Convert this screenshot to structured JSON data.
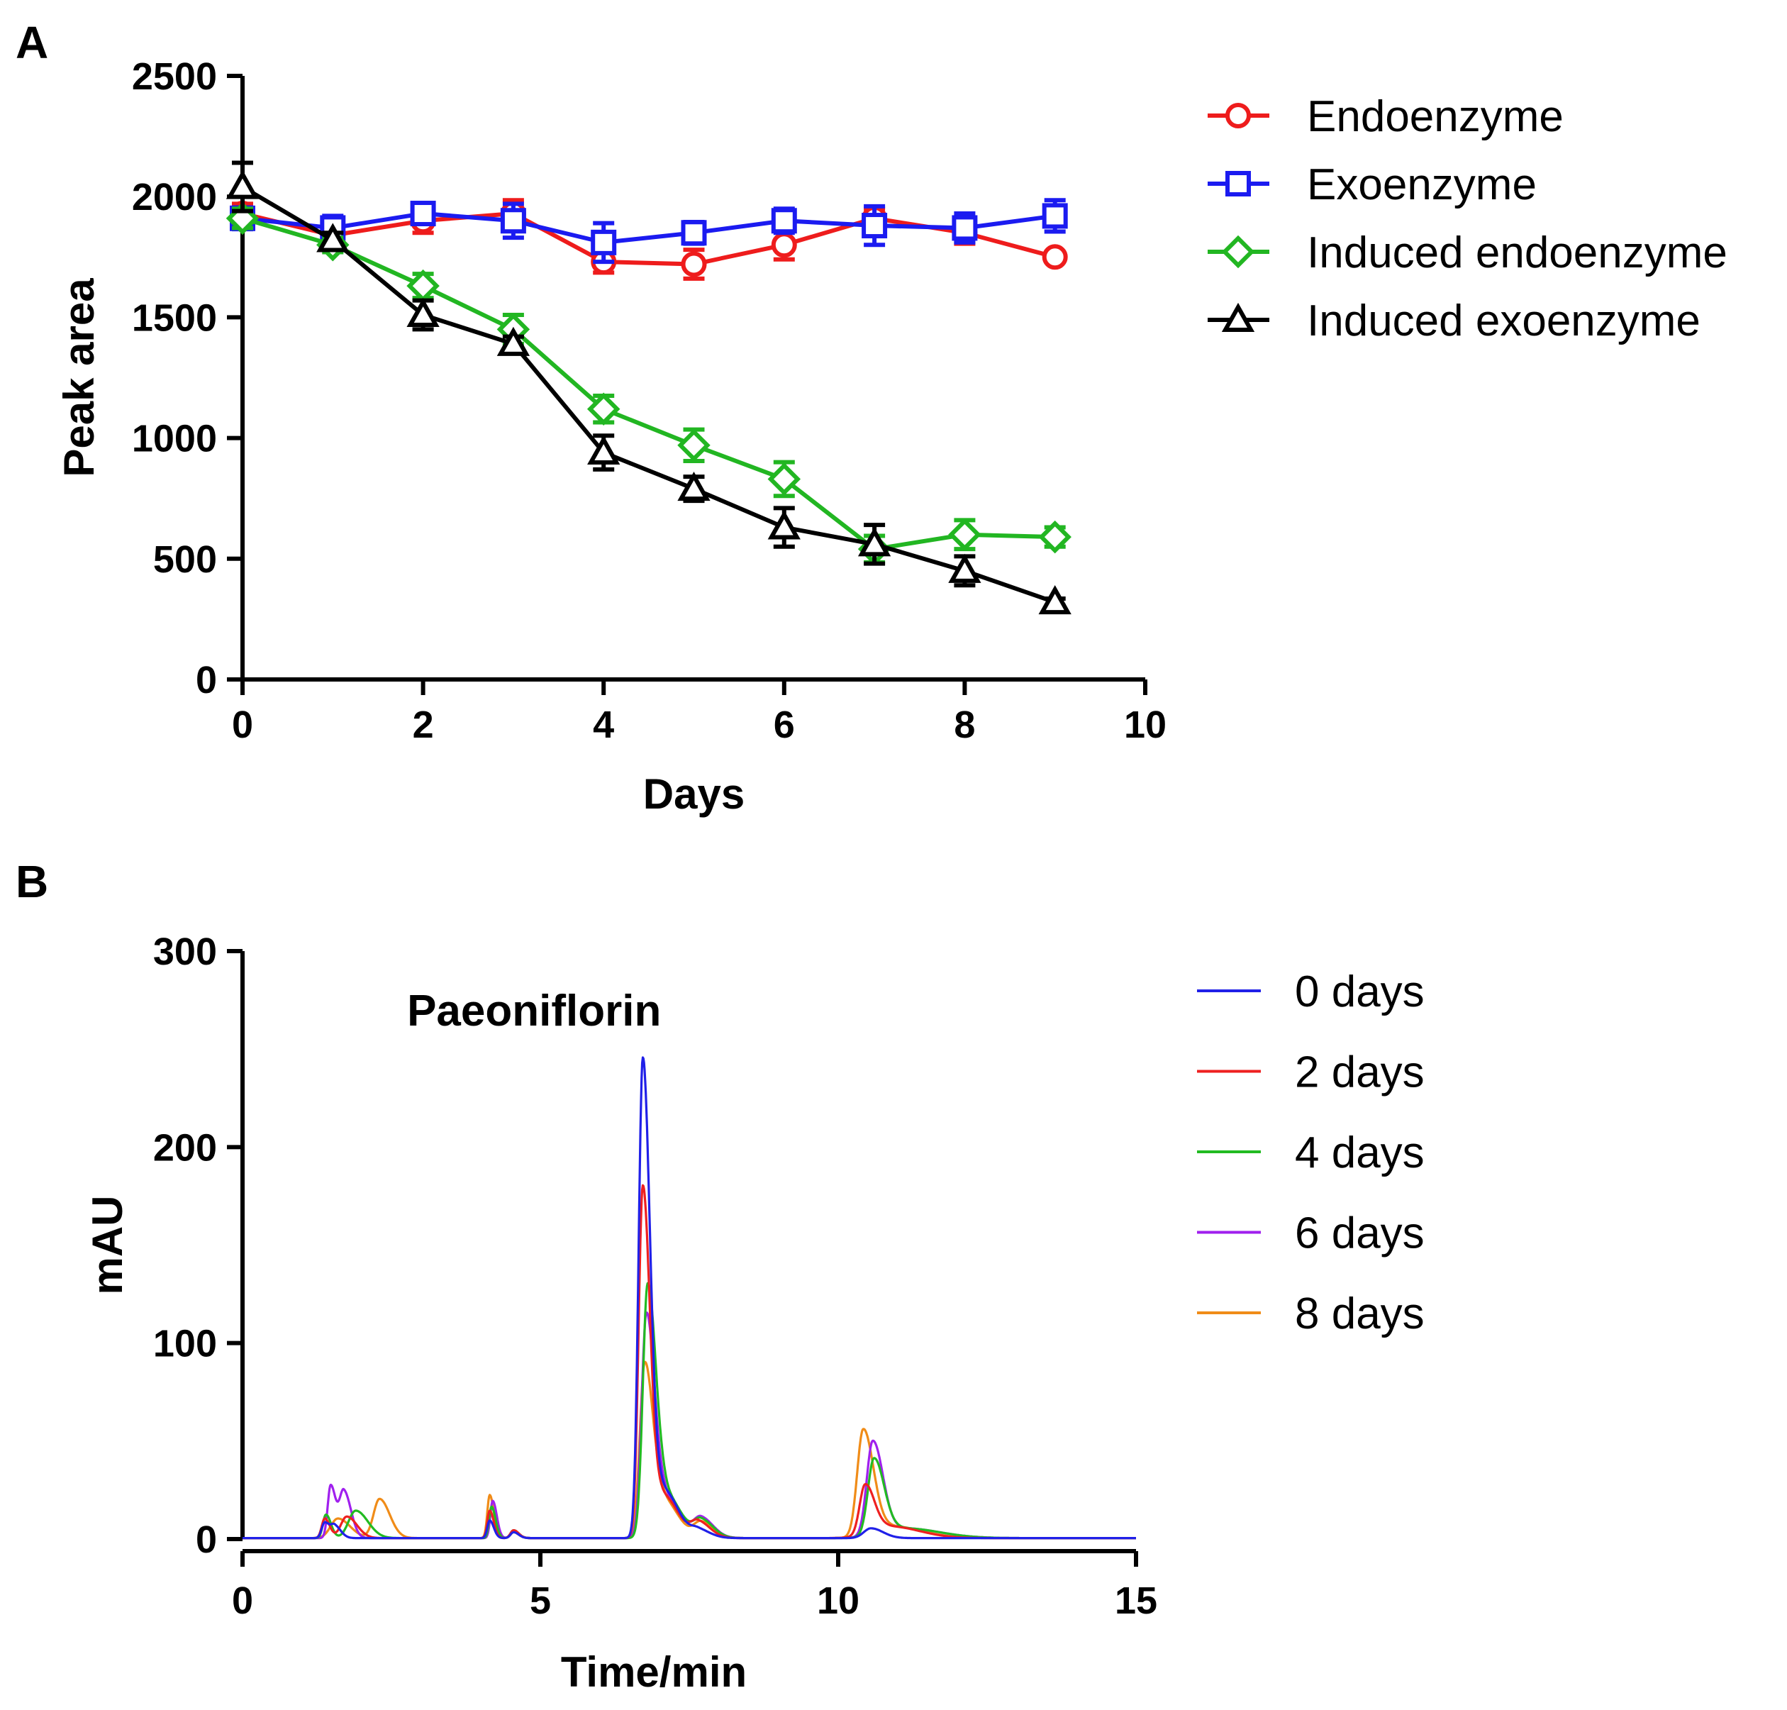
{
  "panel_labels": {
    "a": "A",
    "b": "B"
  },
  "chart_data": [
    {
      "type": "line",
      "panel": "A",
      "title": "",
      "xlabel": "Days",
      "ylabel": "Peak area",
      "xlim": [
        0,
        10
      ],
      "ylim": [
        0,
        2500
      ],
      "xticks": [
        0,
        2,
        4,
        6,
        8,
        10
      ],
      "yticks": [
        0,
        500,
        1000,
        1500,
        2000,
        2500
      ],
      "xtick_labels": [
        "0",
        "2",
        "4",
        "6",
        "8",
        "10"
      ],
      "ytick_labels": [
        "0",
        "500",
        "1000",
        "1500",
        "2000",
        "2500"
      ],
      "legend_position": "right",
      "series": [
        {
          "name": "Endoenzyme",
          "color": "#ee1c1c",
          "marker": "circle",
          "x": [
            0,
            1,
            2,
            3,
            4,
            5,
            6,
            7,
            8,
            9
          ],
          "y": [
            1930,
            1840,
            1900,
            1930,
            1730,
            1720,
            1800,
            1910,
            1850,
            1750
          ],
          "err": [
            40,
            35,
            50,
            55,
            45,
            60,
            60,
            40,
            45,
            20
          ]
        },
        {
          "name": "Exoenzyme",
          "color": "#1b1bf0",
          "marker": "square",
          "x": [
            0,
            1,
            2,
            3,
            4,
            5,
            6,
            7,
            8,
            9
          ],
          "y": [
            1910,
            1870,
            1930,
            1900,
            1810,
            1850,
            1900,
            1880,
            1870,
            1920
          ],
          "err": [
            45,
            50,
            40,
            70,
            80,
            45,
            50,
            80,
            60,
            65
          ]
        },
        {
          "name": "Induced endoenzyme",
          "color": "#22b622",
          "marker": "diamond",
          "x": [
            0,
            1,
            2,
            3,
            4,
            5,
            6,
            7,
            8,
            9
          ],
          "y": [
            1910,
            1800,
            1630,
            1450,
            1120,
            970,
            830,
            540,
            600,
            590
          ],
          "err": [
            40,
            30,
            50,
            60,
            55,
            65,
            70,
            55,
            60,
            40
          ]
        },
        {
          "name": "Induced exoenzyme",
          "color": "#000000",
          "marker": "triangle",
          "x": [
            0,
            1,
            2,
            3,
            4,
            5,
            6,
            7,
            8,
            9
          ],
          "y": [
            2040,
            1820,
            1510,
            1390,
            940,
            790,
            630,
            560,
            450,
            320
          ],
          "err": [
            100,
            30,
            60,
            30,
            70,
            50,
            80,
            80,
            60,
            15
          ]
        }
      ]
    },
    {
      "type": "line",
      "panel": "B",
      "title": "",
      "xlabel": "Time/min",
      "ylabel": "mAU",
      "xlim": [
        0,
        15
      ],
      "ylim": [
        0,
        300
      ],
      "xticks": [
        0,
        5,
        10,
        15
      ],
      "yticks": [
        0,
        100,
        200,
        300
      ],
      "xtick_labels": [
        "0",
        "5",
        "10",
        "15"
      ],
      "ytick_labels": [
        "0",
        "100",
        "200",
        "300"
      ],
      "legend_position": "right",
      "annotations": [
        {
          "text": "Paeoniflorin",
          "x": 6.8,
          "y": 262
        }
      ],
      "series": [
        {
          "name": "0 days",
          "color": "#2020e8",
          "baseline": 0.5,
          "peaks": [
            [
              1.38,
              8,
              0.05
            ],
            [
              1.55,
              6,
              0.06
            ],
            [
              4.15,
              9,
              0.04
            ],
            [
              4.55,
              3,
              0.05
            ],
            [
              6.72,
              243,
              0.07
            ],
            [
              7.05,
              25,
              0.15
            ],
            [
              7.65,
              4,
              0.12
            ],
            [
              10.55,
              5,
              0.12
            ]
          ]
        },
        {
          "name": "2 days",
          "color": "#ee2020",
          "baseline": 0.5,
          "peaks": [
            [
              1.38,
              10,
              0.05
            ],
            [
              1.75,
              11,
              0.1
            ],
            [
              4.15,
              14,
              0.04
            ],
            [
              4.55,
              4,
              0.05
            ],
            [
              6.72,
              178,
              0.07
            ],
            [
              7.05,
              22,
              0.15
            ],
            [
              7.65,
              8,
              0.12
            ],
            [
              10.45,
              25,
              0.09
            ],
            [
              10.85,
              6,
              0.3
            ]
          ]
        },
        {
          "name": "4 days",
          "color": "#22bb22",
          "baseline": 0.5,
          "peaks": [
            [
              1.4,
              12,
              0.05
            ],
            [
              1.9,
              14,
              0.12
            ],
            [
              4.18,
              16,
              0.04
            ],
            [
              4.55,
              4,
              0.05
            ],
            [
              6.8,
              127,
              0.08
            ],
            [
              7.1,
              22,
              0.15
            ],
            [
              7.7,
              9,
              0.12
            ],
            [
              10.6,
              39,
              0.1
            ],
            [
              11.1,
              5,
              0.35
            ]
          ]
        },
        {
          "name": "6 days",
          "color": "#a020ee",
          "baseline": 0.5,
          "peaks": [
            [
              1.48,
              27,
              0.05
            ],
            [
              1.7,
              24,
              0.07
            ],
            [
              4.2,
              19,
              0.04
            ],
            [
              4.55,
              4,
              0.05
            ],
            [
              6.78,
              113,
              0.08
            ],
            [
              7.1,
              20,
              0.15
            ],
            [
              7.7,
              10,
              0.12
            ],
            [
              10.58,
              48,
              0.1
            ],
            [
              11.1,
              5,
              0.35
            ]
          ]
        },
        {
          "name": "8 days",
          "color": "#f08c18",
          "baseline": 0.5,
          "peaks": [
            [
              1.6,
              10,
              0.12
            ],
            [
              2.3,
              20,
              0.1
            ],
            [
              4.15,
              22,
              0.04
            ],
            [
              4.55,
              3,
              0.05
            ],
            [
              6.75,
              87,
              0.08
            ],
            [
              7.05,
              20,
              0.15
            ],
            [
              7.7,
              8,
              0.12
            ],
            [
              10.42,
              54,
              0.1
            ],
            [
              10.9,
              6,
              0.3
            ]
          ]
        }
      ]
    }
  ]
}
